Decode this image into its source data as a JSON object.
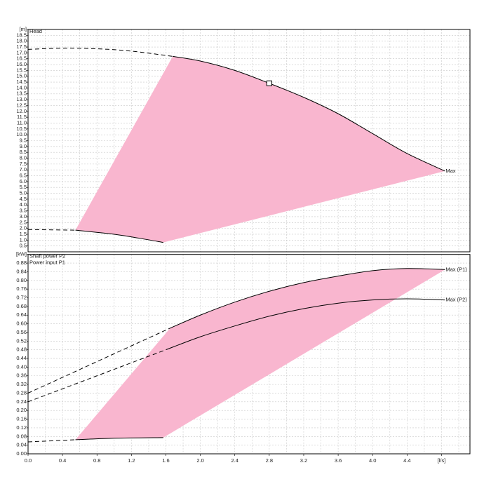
{
  "chart_data": [
    {
      "type": "line",
      "panel_titles": [
        "Head"
      ],
      "xlim": [
        0,
        5.13
      ],
      "xticks": [
        0,
        0.4,
        0.8,
        1.2,
        1.6,
        2,
        2.4,
        2.8,
        3.2,
        3.6,
        4,
        4.4,
        4.8
      ],
      "xgrid": [
        0.2,
        0.6,
        1.0,
        1.4,
        1.8,
        2.2,
        2.6,
        3.0,
        3.4,
        3.8,
        4.2,
        4.6,
        5.0
      ],
      "show_xtick_labels": false,
      "ylim": [
        0,
        19
      ],
      "yticks": [
        0.5,
        {
          "value": 1,
          "label": "1.0"
        },
        1.5,
        {
          "value": 2,
          "label": "2.0"
        },
        2.5,
        {
          "value": 3,
          "label": "3.0"
        },
        3.5,
        {
          "value": 4,
          "label": "4.0"
        },
        4.5,
        {
          "value": 5,
          "label": "5.0"
        },
        5.5,
        {
          "value": 6,
          "label": "6.0"
        },
        6.5,
        {
          "value": 7,
          "label": "7.0"
        },
        7.5,
        {
          "value": 8,
          "label": "8.0"
        },
        8.5,
        {
          "value": 9,
          "label": "9.0"
        },
        9.5,
        {
          "value": 10,
          "label": "10.0"
        },
        10.5,
        {
          "value": 11,
          "label": "11.0"
        },
        11.5,
        {
          "value": 12,
          "label": "12.0"
        },
        12.5,
        {
          "value": 13,
          "label": "13.0"
        },
        13.5,
        {
          "value": 14,
          "label": "14.0"
        },
        14.5,
        {
          "value": 15,
          "label": "15.0"
        },
        15.5,
        {
          "value": 16,
          "label": "16.0"
        },
        16.5,
        {
          "value": 17,
          "label": "17.0"
        },
        17.5,
        {
          "value": 18,
          "label": "18.0"
        },
        18.5,
        {
          "value": 19,
          "label": "[m]"
        }
      ],
      "grid": true,
      "area": {
        "color": "#f9b6cf",
        "x": [
          0.55,
          1.68,
          2.0,
          2.4,
          2.8,
          3.2,
          3.6,
          4.0,
          4.4,
          4.84,
          1.57,
          1.3,
          1.0
        ],
        "values": [
          1.85,
          16.7,
          16.3,
          15.5,
          14.4,
          13.2,
          11.8,
          10.1,
          8.4,
          6.9,
          0.8,
          1.15,
          1.5
        ]
      },
      "curves": [
        {
          "dashed": true,
          "x": [
            0,
            0.4,
            0.8,
            1.2,
            1.68
          ],
          "values": [
            17.3,
            17.4,
            17.35,
            17.15,
            16.7
          ]
        },
        {
          "dashed": false,
          "x": [
            1.68,
            2.0,
            2.4,
            2.8,
            3.2,
            3.6,
            4.0,
            4.4,
            4.84
          ],
          "values": [
            16.7,
            16.3,
            15.5,
            14.4,
            13.2,
            11.8,
            10.1,
            8.4,
            6.9
          ],
          "end_label": "Max"
        },
        {
          "dashed": true,
          "x": [
            0,
            0.55
          ],
          "values": [
            1.9,
            1.85
          ]
        },
        {
          "dashed": false,
          "x": [
            0.55,
            1.0,
            1.3,
            1.57
          ],
          "values": [
            1.85,
            1.5,
            1.15,
            0.8
          ]
        }
      ],
      "marker": {
        "x": 2.8,
        "y": 14.4
      }
    },
    {
      "type": "line",
      "panel_titles": [
        "Shaft power P2",
        "Power input P1"
      ],
      "xlim": [
        0,
        5.13
      ],
      "xticks": [
        {
          "value": 0,
          "label": "0.0"
        },
        0.4,
        0.8,
        1.2,
        1.6,
        {
          "value": 2,
          "label": "2.0"
        },
        2.4,
        2.8,
        3.2,
        3.6,
        {
          "value": 4,
          "label": "4.0"
        },
        4.4,
        {
          "value": 4.8,
          "label": "[l/s]"
        }
      ],
      "xgrid": [
        0.2,
        0.6,
        1.0,
        1.4,
        1.8,
        2.2,
        2.6,
        3.0,
        3.4,
        3.8,
        4.2,
        4.6,
        5.0
      ],
      "show_xtick_labels": true,
      "ylim": [
        0,
        0.92
      ],
      "yticks": [
        {
          "value": 0,
          "label": "0.00"
        },
        0.04,
        0.08,
        0.12,
        0.16,
        {
          "value": 0.2,
          "label": "0.20"
        },
        0.24,
        0.28,
        0.32,
        0.36,
        {
          "value": 0.4,
          "label": "0.40"
        },
        0.44,
        0.48,
        0.52,
        0.56,
        {
          "value": 0.6,
          "label": "0.60"
        },
        0.64,
        0.68,
        0.72,
        0.76,
        {
          "value": 0.8,
          "label": "0.80"
        },
        0.84,
        0.88,
        {
          "value": 0.92,
          "label": "[kW]"
        }
      ],
      "grid": true,
      "area": {
        "color": "#f9b6cf",
        "x": [
          0.55,
          1.65,
          2.0,
          2.4,
          2.8,
          3.2,
          3.6,
          4.0,
          4.4,
          4.84,
          1.57,
          1.0
        ],
        "values": [
          0.065,
          0.58,
          0.64,
          0.7,
          0.75,
          0.79,
          0.82,
          0.845,
          0.855,
          0.85,
          0.075,
          0.072
        ]
      },
      "curves": [
        {
          "dashed": true,
          "x": [
            0,
            1.65
          ],
          "values": [
            0.28,
            0.58
          ]
        },
        {
          "dashed": false,
          "x": [
            1.65,
            2.0,
            2.4,
            2.8,
            3.2,
            3.6,
            4.0,
            4.4,
            4.84
          ],
          "values": [
            0.58,
            0.64,
            0.7,
            0.75,
            0.79,
            0.82,
            0.845,
            0.855,
            0.85
          ],
          "end_label": "Max (P1)"
        },
        {
          "dashed": true,
          "x": [
            0,
            1.6
          ],
          "values": [
            0.24,
            0.48
          ]
        },
        {
          "dashed": false,
          "x": [
            1.6,
            2.0,
            2.4,
            2.8,
            3.2,
            3.6,
            4.0,
            4.4,
            4.84
          ],
          "values": [
            0.48,
            0.54,
            0.59,
            0.635,
            0.67,
            0.695,
            0.71,
            0.715,
            0.71
          ],
          "end_label": "Max (P2)"
        },
        {
          "dashed": true,
          "x": [
            0,
            0.55
          ],
          "values": [
            0.055,
            0.065
          ]
        },
        {
          "dashed": false,
          "x": [
            0.55,
            1.0,
            1.57
          ],
          "values": [
            0.065,
            0.072,
            0.075
          ]
        }
      ]
    }
  ]
}
